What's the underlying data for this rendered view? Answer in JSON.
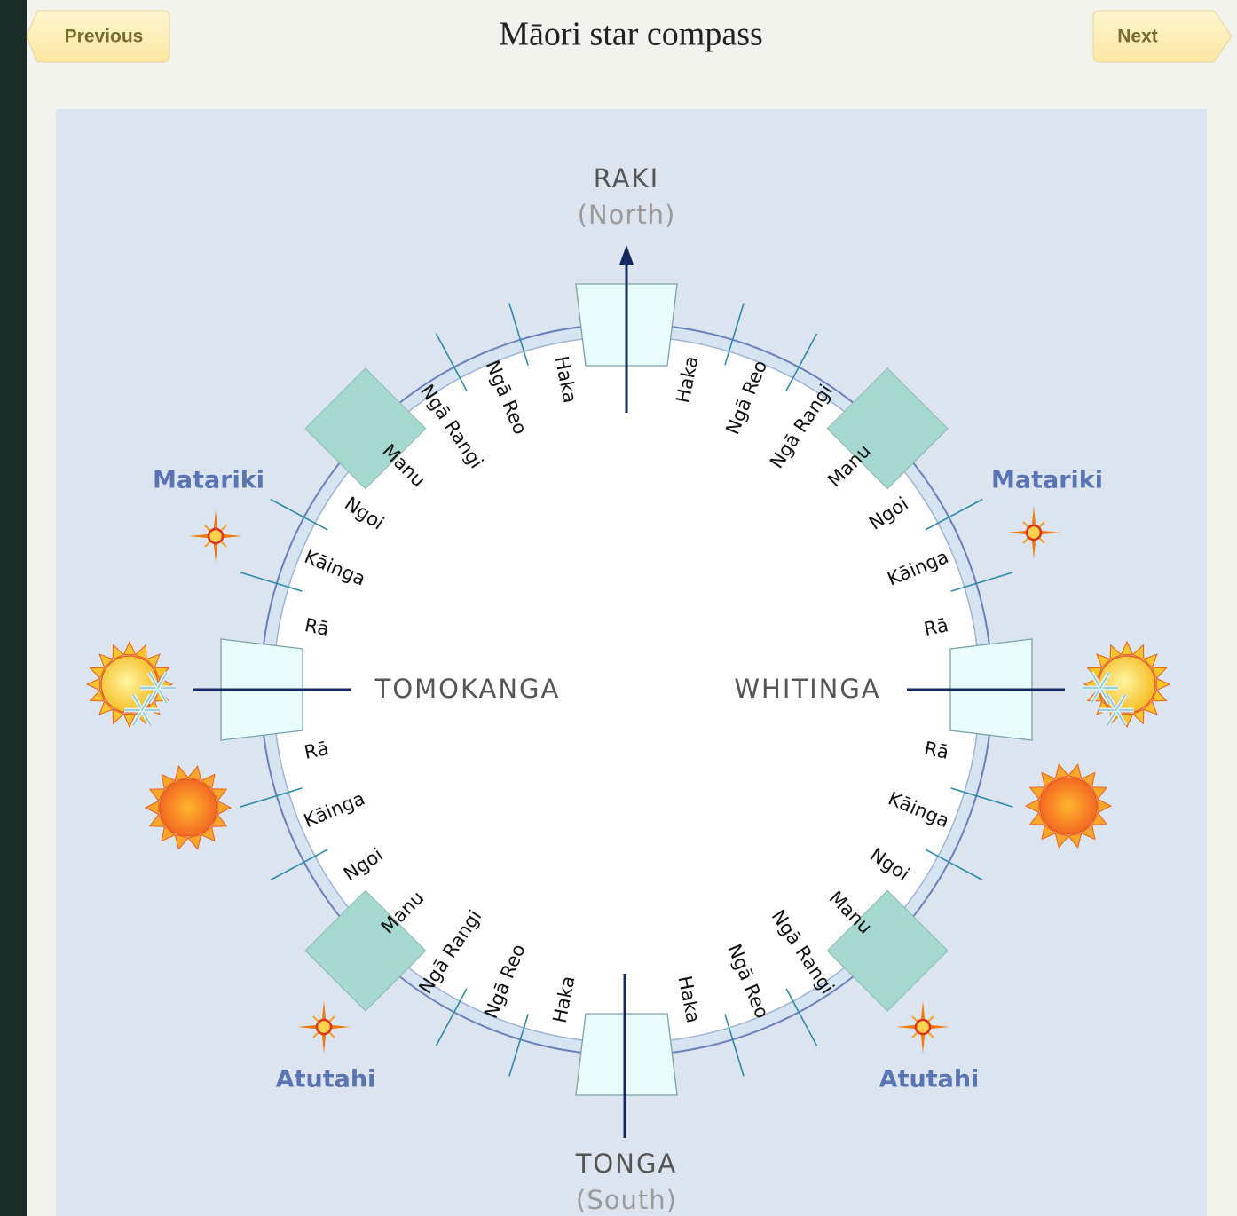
{
  "header": {
    "previous": "Previous",
    "title": "Māori star compass",
    "next": "Next"
  },
  "compass": {
    "directions": {
      "north": "RAKI",
      "north_en": "(North)",
      "west": "TOMOKANGA",
      "east": "WHITINGA",
      "south": "TONGA",
      "south_en": "(South)"
    },
    "quadrants": {
      "north_east": [
        "Haka",
        "Ngā Reo",
        "Ngā Rangi",
        "Manu",
        "Ngoi",
        "Kāinga",
        "Rā"
      ],
      "south_east": [
        "Haka",
        "Ngā Reo",
        "Ngā Rangi",
        "Manu",
        "Ngoi",
        "Kāinga",
        "Rā"
      ],
      "south_west": [
        "Haka",
        "Ngā Reo",
        "Ngā Rangi",
        "Manu",
        "Ngoi",
        "Kāinga",
        "Rā"
      ],
      "north_west": [
        "Haka",
        "Ngā Reo",
        "Ngā Rangi",
        "Manu",
        "Ngoi",
        "Kāinga",
        "Rā"
      ]
    },
    "stars": {
      "north_west": "Matariki",
      "north_east": "Matariki",
      "south_west": "Atutahi",
      "south_east": "Atutahi"
    }
  }
}
